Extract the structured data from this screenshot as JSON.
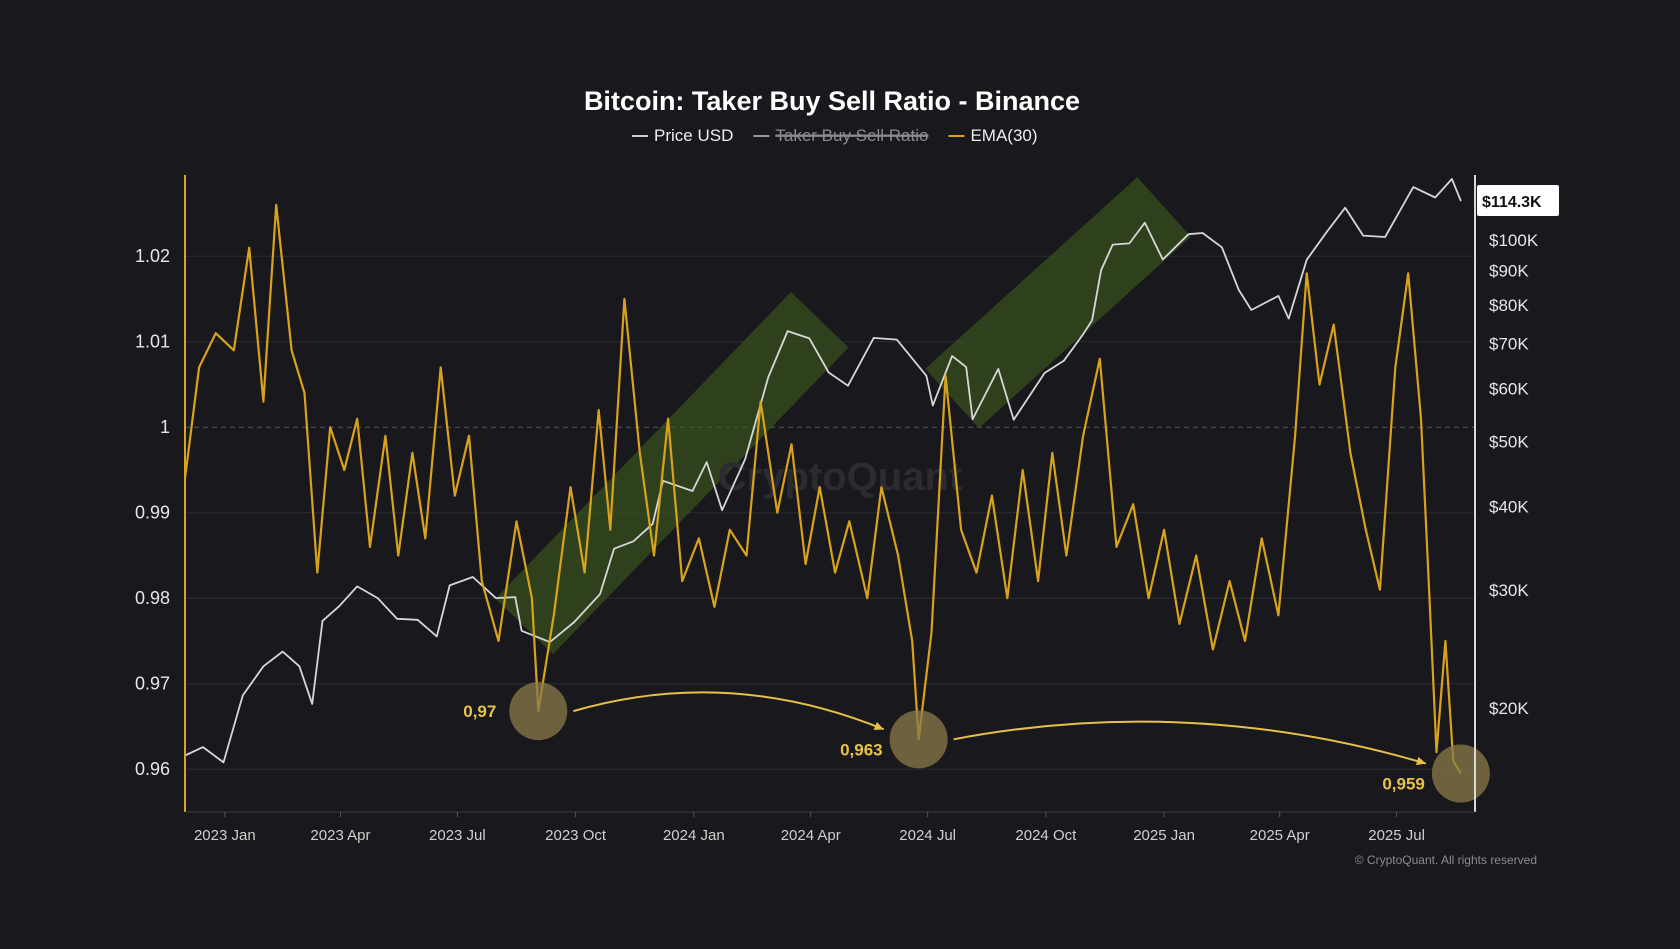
{
  "chart_data": {
    "type": "line",
    "title": "Bitcoin: Taker Buy Sell Ratio - Binance",
    "legend": [
      {
        "label": "Price USD",
        "color": "#cfcfcf",
        "hidden": false
      },
      {
        "label": "Taker Buy Sell Ratio",
        "color": "#9a9a9a",
        "hidden": true
      },
      {
        "label": "EMA(30)",
        "color": "#d8a21d",
        "hidden": false
      }
    ],
    "x_ticks": [
      "2023 Jan",
      "2023 Apr",
      "2023 Jul",
      "2023 Oct",
      "2024 Jan",
      "2024 Apr",
      "2024 Jul",
      "2024 Oct",
      "2025 Jan",
      "2025 Apr",
      "2025 Jul"
    ],
    "x_range": [
      "2022-12-01",
      "2025-08-31"
    ],
    "y_left": {
      "ticks": [
        "0.96",
        "0.97",
        "0.98",
        "0.99",
        "1",
        "1.01",
        "1.02"
      ],
      "range": [
        0.955,
        1.0295
      ],
      "reference_line": 1
    },
    "y_right": {
      "scale": "log",
      "ticks": [
        "$20K",
        "$30K",
        "$40K",
        "$50K",
        "$60K",
        "$70K",
        "$80K",
        "$90K",
        "$100K"
      ],
      "last_value_label": "$114.3K",
      "range": [
        14000,
        125000
      ]
    },
    "series": [
      {
        "name": "Price USD",
        "axis": "right",
        "color": "#d6d6d6",
        "points": [
          [
            "2022-12-01",
            17000
          ],
          [
            "2022-12-15",
            17500
          ],
          [
            "2022-12-31",
            16600
          ],
          [
            "2023-01-15",
            20900
          ],
          [
            "2023-01-31",
            23100
          ],
          [
            "2023-02-15",
            24300
          ],
          [
            "2023-02-28",
            23100
          ],
          [
            "2023-03-10",
            20300
          ],
          [
            "2023-03-18",
            27000
          ],
          [
            "2023-03-31",
            28400
          ],
          [
            "2023-04-14",
            30400
          ],
          [
            "2023-04-30",
            29200
          ],
          [
            "2023-05-15",
            27200
          ],
          [
            "2023-05-31",
            27100
          ],
          [
            "2023-06-15",
            25600
          ],
          [
            "2023-06-25",
            30500
          ],
          [
            "2023-07-13",
            31400
          ],
          [
            "2023-07-31",
            29200
          ],
          [
            "2023-08-15",
            29300
          ],
          [
            "2023-08-20",
            26100
          ],
          [
            "2023-09-11",
            25100
          ],
          [
            "2023-09-30",
            26900
          ],
          [
            "2023-10-20",
            29600
          ],
          [
            "2023-10-31",
            34600
          ],
          [
            "2023-11-15",
            35500
          ],
          [
            "2023-11-30",
            37700
          ],
          [
            "2023-12-08",
            43700
          ],
          [
            "2023-12-31",
            42200
          ],
          [
            "2024-01-11",
            46600
          ],
          [
            "2024-01-23",
            39500
          ],
          [
            "2024-02-10",
            47100
          ],
          [
            "2024-02-28",
            62400
          ],
          [
            "2024-03-14",
            73100
          ],
          [
            "2024-03-31",
            71300
          ],
          [
            "2024-04-15",
            63400
          ],
          [
            "2024-04-30",
            60600
          ],
          [
            "2024-05-20",
            71400
          ],
          [
            "2024-06-07",
            71000
          ],
          [
            "2024-06-30",
            62700
          ],
          [
            "2024-07-05",
            56600
          ],
          [
            "2024-07-20",
            67100
          ],
          [
            "2024-07-31",
            64600
          ],
          [
            "2024-08-05",
            54000
          ],
          [
            "2024-08-25",
            64200
          ],
          [
            "2024-09-06",
            53900
          ],
          [
            "2024-09-30",
            63300
          ],
          [
            "2024-10-15",
            66000
          ],
          [
            "2024-10-30",
            72300
          ],
          [
            "2024-11-06",
            75900
          ],
          [
            "2024-11-13",
            90100
          ],
          [
            "2024-11-22",
            98400
          ],
          [
            "2024-12-05",
            98800
          ],
          [
            "2024-12-17",
            106100
          ],
          [
            "2024-12-31",
            93500
          ],
          [
            "2025-01-20",
            102000
          ],
          [
            "2025-01-31",
            102400
          ],
          [
            "2025-02-15",
            97500
          ],
          [
            "2025-02-28",
            84300
          ],
          [
            "2025-03-10",
            78600
          ],
          [
            "2025-03-31",
            82500
          ],
          [
            "2025-04-08",
            76300
          ],
          [
            "2025-04-22",
            93400
          ],
          [
            "2025-05-08",
            103000
          ],
          [
            "2025-05-22",
            111700
          ],
          [
            "2025-06-05",
            101500
          ],
          [
            "2025-06-22",
            101000
          ],
          [
            "2025-07-14",
            119900
          ],
          [
            "2025-07-31",
            115700
          ],
          [
            "2025-08-13",
            123300
          ],
          [
            "2025-08-20",
            114300
          ]
        ]
      },
      {
        "name": "EMA(30)",
        "axis": "left",
        "color": "#d8a21d",
        "points": [
          [
            "2022-12-01",
            0.994
          ],
          [
            "2022-12-12",
            1.007
          ],
          [
            "2022-12-25",
            1.011
          ],
          [
            "2023-01-08",
            1.009
          ],
          [
            "2023-01-20",
            1.021
          ],
          [
            "2023-01-31",
            1.003
          ],
          [
            "2023-02-10",
            1.026
          ],
          [
            "2023-02-22",
            1.009
          ],
          [
            "2023-03-04",
            1.004
          ],
          [
            "2023-03-14",
            0.983
          ],
          [
            "2023-03-24",
            1.0
          ],
          [
            "2023-04-04",
            0.995
          ],
          [
            "2023-04-14",
            1.001
          ],
          [
            "2023-04-24",
            0.986
          ],
          [
            "2023-05-06",
            0.999
          ],
          [
            "2023-05-16",
            0.985
          ],
          [
            "2023-05-27",
            0.997
          ],
          [
            "2023-06-06",
            0.987
          ],
          [
            "2023-06-18",
            1.007
          ],
          [
            "2023-06-29",
            0.992
          ],
          [
            "2023-07-10",
            0.999
          ],
          [
            "2023-07-20",
            0.982
          ],
          [
            "2023-08-02",
            0.975
          ],
          [
            "2023-08-16",
            0.989
          ],
          [
            "2023-08-28",
            0.98
          ],
          [
            "2023-09-02",
            0.9668
          ],
          [
            "2023-09-14",
            0.978
          ],
          [
            "2023-09-27",
            0.993
          ],
          [
            "2023-10-08",
            0.983
          ],
          [
            "2023-10-19",
            1.002
          ],
          [
            "2023-10-28",
            0.988
          ],
          [
            "2023-11-08",
            1.015
          ],
          [
            "2023-11-20",
            0.997
          ],
          [
            "2023-12-01",
            0.985
          ],
          [
            "2023-12-12",
            1.001
          ],
          [
            "2023-12-23",
            0.982
          ],
          [
            "2024-01-05",
            0.987
          ],
          [
            "2024-01-17",
            0.979
          ],
          [
            "2024-01-29",
            0.988
          ],
          [
            "2024-02-11",
            0.985
          ],
          [
            "2024-02-22",
            1.003
          ],
          [
            "2024-03-06",
            0.99
          ],
          [
            "2024-03-17",
            0.998
          ],
          [
            "2024-03-28",
            0.984
          ],
          [
            "2024-04-08",
            0.993
          ],
          [
            "2024-04-20",
            0.983
          ],
          [
            "2024-05-01",
            0.989
          ],
          [
            "2024-05-15",
            0.98
          ],
          [
            "2024-05-26",
            0.993
          ],
          [
            "2024-06-08",
            0.985
          ],
          [
            "2024-06-19",
            0.975
          ],
          [
            "2024-06-24",
            0.9635
          ],
          [
            "2024-07-04",
            0.976
          ],
          [
            "2024-07-15",
            1.006
          ],
          [
            "2024-07-27",
            0.988
          ],
          [
            "2024-08-08",
            0.983
          ],
          [
            "2024-08-20",
            0.992
          ],
          [
            "2024-09-01",
            0.98
          ],
          [
            "2024-09-13",
            0.995
          ],
          [
            "2024-09-25",
            0.982
          ],
          [
            "2024-10-06",
            0.997
          ],
          [
            "2024-10-17",
            0.985
          ],
          [
            "2024-10-30",
            0.999
          ],
          [
            "2024-11-12",
            1.008
          ],
          [
            "2024-11-25",
            0.986
          ],
          [
            "2024-12-08",
            0.991
          ],
          [
            "2024-12-20",
            0.98
          ],
          [
            "2025-01-01",
            0.988
          ],
          [
            "2025-01-13",
            0.977
          ],
          [
            "2025-01-26",
            0.985
          ],
          [
            "2025-02-08",
            0.974
          ],
          [
            "2025-02-21",
            0.982
          ],
          [
            "2025-03-05",
            0.975
          ],
          [
            "2025-03-18",
            0.987
          ],
          [
            "2025-03-31",
            0.978
          ],
          [
            "2025-04-13",
            0.999
          ],
          [
            "2025-04-22",
            1.018
          ],
          [
            "2025-05-02",
            1.005
          ],
          [
            "2025-05-13",
            1.012
          ],
          [
            "2025-05-26",
            0.997
          ],
          [
            "2025-06-07",
            0.988
          ],
          [
            "2025-06-18",
            0.981
          ],
          [
            "2025-06-30",
            1.007
          ],
          [
            "2025-07-10",
            1.018
          ],
          [
            "2025-07-20",
            1.001
          ],
          [
            "2025-07-26",
            0.982
          ],
          [
            "2025-08-01",
            0.962
          ],
          [
            "2025-08-08",
            0.975
          ],
          [
            "2025-08-14",
            0.961
          ],
          [
            "2025-08-20",
            0.9595
          ]
        ]
      }
    ],
    "annotations": [
      {
        "label": "0,97",
        "date": "2023-09-02",
        "value": 0.9668,
        "label_side": "left"
      },
      {
        "label": "0,963",
        "date": "2024-06-24",
        "value": 0.9635,
        "label_side": "below-left"
      },
      {
        "label": "0,959",
        "date": "2025-08-20",
        "value": 0.9595,
        "label_side": "below-left"
      }
    ],
    "trend_channels": [
      {
        "from": [
          "2023-08-22",
          26500
        ],
        "to": [
          "2024-04-08",
          76000
        ]
      },
      {
        "from": [
          "2024-07-20",
          58000
        ],
        "to": [
          "2025-01-01",
          112000
        ]
      }
    ],
    "watermark": "CryptoQuant",
    "copyright": "© CryptoQuant. All rights reserved",
    "colors": {
      "background": "#19191d",
      "grid": "#2a2a30",
      "left_axis": "#d9a521",
      "right_axis": "#d9d9d9",
      "annotation_fill": "#8a7a4a",
      "channel_fill": "#3e5a1e"
    }
  }
}
